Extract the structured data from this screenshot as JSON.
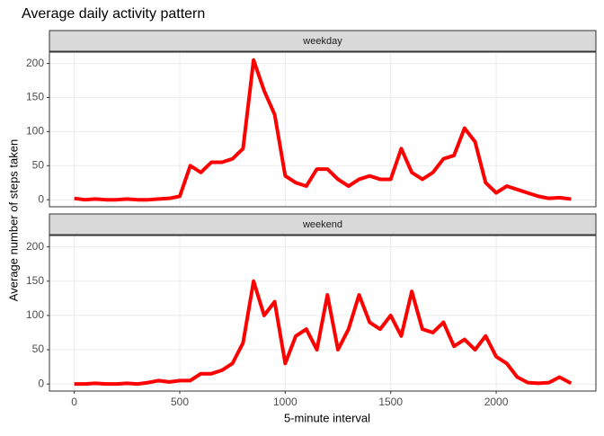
{
  "chart_data": {
    "type": "line",
    "title": "Average daily activity pattern",
    "xlabel": "5-minute interval",
    "ylabel": "Average number of steps taken",
    "facets": true,
    "grid": true,
    "x": [
      0,
      50,
      100,
      150,
      200,
      250,
      300,
      350,
      400,
      450,
      500,
      550,
      600,
      650,
      700,
      750,
      800,
      850,
      900,
      950,
      1000,
      1050,
      1100,
      1150,
      1200,
      1250,
      1300,
      1350,
      1400,
      1450,
      1500,
      1550,
      1600,
      1650,
      1700,
      1750,
      1800,
      1850,
      1900,
      1950,
      2000,
      2050,
      2100,
      2150,
      2200,
      2250,
      2300,
      2355
    ],
    "series": [
      {
        "name": "weekday",
        "color": "#ff0000",
        "values": [
          2,
          0,
          1,
          0,
          0,
          1,
          0,
          0,
          1,
          2,
          5,
          50,
          40,
          55,
          55,
          60,
          75,
          205,
          160,
          125,
          35,
          25,
          20,
          45,
          45,
          30,
          20,
          30,
          35,
          30,
          30,
          75,
          40,
          30,
          40,
          60,
          65,
          105,
          85,
          25,
          10,
          20,
          15,
          10,
          5,
          2,
          3,
          1
        ]
      },
      {
        "name": "weekend",
        "color": "#ff0000",
        "values": [
          0,
          0,
          1,
          0,
          0,
          1,
          0,
          2,
          5,
          3,
          5,
          5,
          15,
          15,
          20,
          30,
          60,
          150,
          100,
          120,
          30,
          70,
          80,
          50,
          130,
          50,
          80,
          130,
          90,
          80,
          100,
          70,
          135,
          80,
          75,
          90,
          55,
          65,
          50,
          70,
          40,
          30,
          10,
          2,
          1,
          2,
          10,
          1
        ]
      }
    ],
    "xlim": [
      -117.75,
      2472.75
    ],
    "xticks": [
      0,
      500,
      1000,
      1500,
      2000
    ],
    "ylim": [
      -10.3,
      216.6
    ],
    "yticks": [
      0,
      50,
      100,
      150,
      200
    ]
  }
}
